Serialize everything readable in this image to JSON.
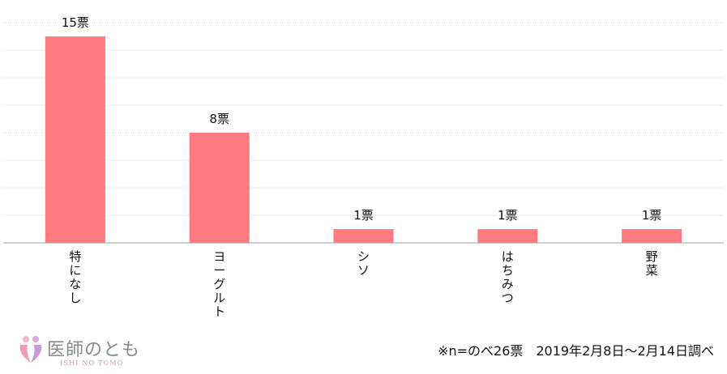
{
  "chart_data": {
    "type": "bar",
    "categories": [
      "特になし",
      "ヨーグルト",
      "シソ",
      "はちみつ",
      "野菜"
    ],
    "values": [
      15,
      8,
      1,
      1,
      1
    ],
    "data_labels": [
      "15票",
      "8票",
      "1票",
      "1票",
      "1票"
    ],
    "ylim": [
      0,
      16
    ],
    "grid": true,
    "bar_color": "#ff7b80",
    "grid_color": "#d9d9d9",
    "axis_color": "#bfbfbf"
  },
  "logo": {
    "name": "医師のとも",
    "romaji": "ISHI NO TOMO"
  },
  "footnote": "※n=のべ26票　2019年2月8日～2月14日調べ"
}
